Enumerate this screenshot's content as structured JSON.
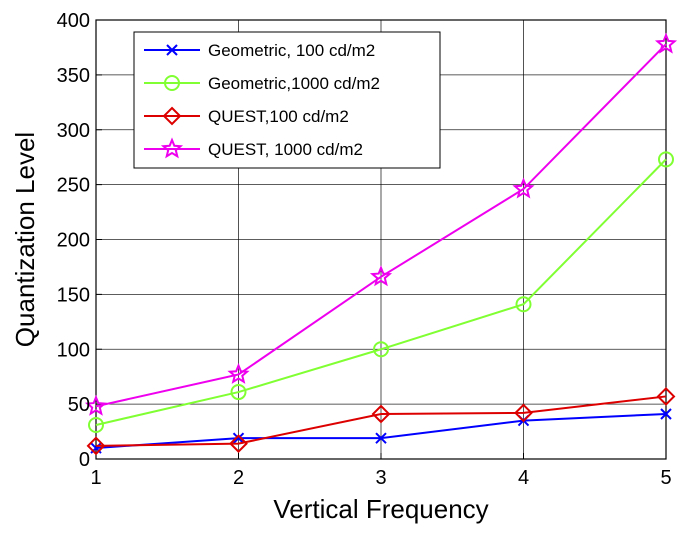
{
  "chart_data": {
    "type": "line",
    "title": "",
    "xlabel": "Vertical Frequency",
    "ylabel": "Quantization Level",
    "x": [
      1,
      2,
      3,
      4,
      5
    ],
    "xlim": [
      1,
      5
    ],
    "ylim": [
      0,
      400
    ],
    "xticks": [
      1,
      2,
      3,
      4,
      5
    ],
    "yticks": [
      0,
      50,
      100,
      150,
      200,
      250,
      300,
      350,
      400
    ],
    "grid": true,
    "legend_position": "top-left",
    "series": [
      {
        "name": "Geometric, 100 cd/m2",
        "color": "#0000ff",
        "marker": "x",
        "values": [
          10,
          19,
          19,
          35,
          41
        ]
      },
      {
        "name": "Geometric,1000 cd/m2",
        "color": "#80ff33",
        "marker": "circle",
        "values": [
          31,
          61,
          100,
          141,
          273
        ]
      },
      {
        "name": "QUEST,100 cd/m2",
        "color": "#dd0000",
        "marker": "diamond",
        "values": [
          12,
          14,
          41,
          42,
          57
        ]
      },
      {
        "name": "QUEST, 1000 cd/m2",
        "color": "#ee00ee",
        "marker": "star",
        "values": [
          48,
          77,
          166,
          246,
          378
        ]
      }
    ]
  }
}
